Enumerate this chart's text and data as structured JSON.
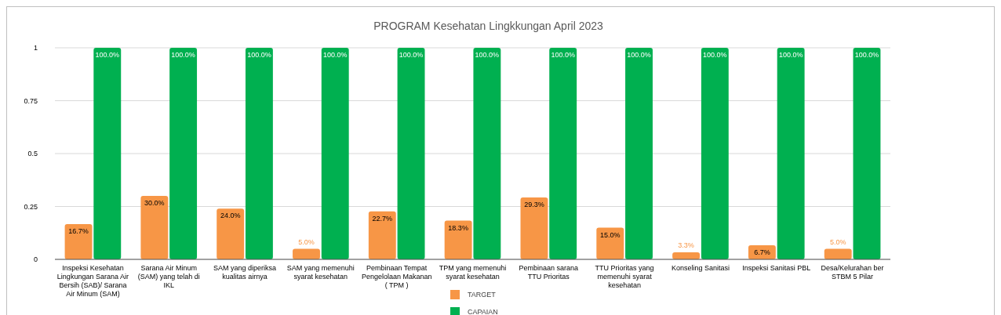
{
  "chart_data": {
    "type": "bar",
    "title": "PROGRAM Kesehatan Lingkkungan April 2023",
    "categories": [
      "Inspeksi Kesehatan Lingkungan Sarana Air Bersih (SAB)/ Sarana Air Minum (SAM)",
      "Sarana Air Minum (SAM) yang telah di IKL",
      "SAM yang diperiksa kualitas airnya",
      "SAM yang memenuhi syarat kesehatan",
      "Pembinaan Tempat Pengelolaan Makanan ( TPM )",
      "TPM yang memenuhi syarat kesehatan",
      "Pembinaan sarana TTU Prioritas",
      "TTU Prioritas yang memenuhi syarat kesehatan",
      "Konseling Sanitasi",
      "Inspeksi Sanitasi PBL",
      "Desa/Kelurahan ber STBM 5 Pilar"
    ],
    "series": [
      {
        "name": "TARGET",
        "color": "#f79646",
        "values": [
          0.167,
          0.3,
          0.24,
          0.05,
          0.227,
          0.183,
          0.293,
          0.15,
          0.033,
          0.067,
          0.05
        ],
        "value_labels": [
          "16.7%",
          "30.0%",
          "24.0%",
          "5.0%",
          "22.7%",
          "18.3%",
          "29.3%",
          "15.0%",
          "3.3%",
          "6.7%",
          "5.0%"
        ]
      },
      {
        "name": "CAPAIAN",
        "color": "#00b050",
        "values": [
          1,
          1,
          1,
          1,
          1,
          1,
          1,
          1,
          1,
          1,
          1
        ],
        "value_labels": [
          "100.0%",
          "100.0%",
          "100.0%",
          "100.0%",
          "100.0%",
          "100.0%",
          "100.0%",
          "100.0%",
          "100.0%",
          "100.0%",
          "100.0%"
        ]
      }
    ],
    "ylim": [
      0,
      1
    ],
    "yticks": [
      0,
      0.25,
      0.5,
      0.75,
      1
    ],
    "grid": "y",
    "legend": "bottom"
  }
}
